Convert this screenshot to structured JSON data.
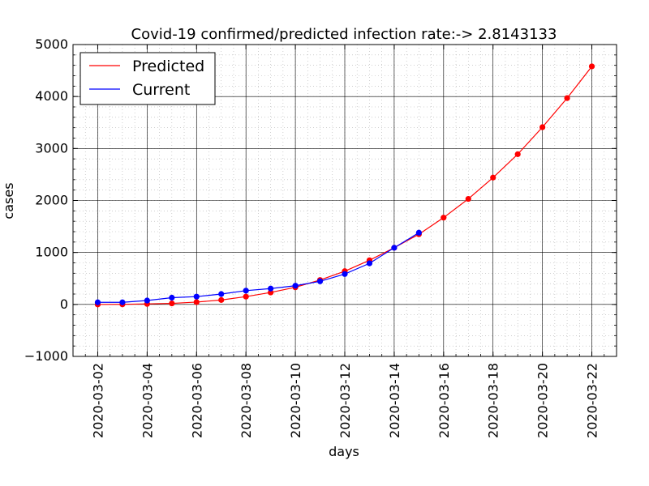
{
  "chart_data": {
    "type": "line",
    "title": "Covid-19 confirmed/predicted infection rate:-> 2.8143133",
    "xlabel": "days",
    "ylabel": "cases",
    "ylim": [
      -1000,
      5000
    ],
    "xlim": [
      "2020-03-01",
      "2020-03-23"
    ],
    "yticks": [
      -1000,
      0,
      1000,
      2000,
      3000,
      4000,
      5000
    ],
    "ytick_labels": [
      "−1000",
      "0",
      "1000",
      "2000",
      "3000",
      "4000",
      "5000"
    ],
    "xticks": [
      "2020-03-02",
      "2020-03-04",
      "2020-03-06",
      "2020-03-08",
      "2020-03-10",
      "2020-03-12",
      "2020-03-14",
      "2020-03-16",
      "2020-03-18",
      "2020-03-20",
      "2020-03-22"
    ],
    "grid": true,
    "minor_grid": true,
    "legend_position": "top-left",
    "series": [
      {
        "name": "Predicted",
        "color": "#ff0000",
        "x": [
          "2020-03-02",
          "2020-03-03",
          "2020-03-04",
          "2020-03-05",
          "2020-03-06",
          "2020-03-07",
          "2020-03-08",
          "2020-03-09",
          "2020-03-10",
          "2020-03-11",
          "2020-03-12",
          "2020-03-13",
          "2020-03-14",
          "2020-03-15",
          "2020-03-16",
          "2020-03-17",
          "2020-03-18",
          "2020-03-19",
          "2020-03-20",
          "2020-03-21",
          "2020-03-22"
        ],
        "values": [
          0,
          2,
          10,
          20,
          45,
          85,
          150,
          230,
          330,
          470,
          640,
          850,
          1090,
          1350,
          1670,
          2030,
          2440,
          2890,
          3410,
          3970,
          4580
        ]
      },
      {
        "name": "Current",
        "color": "#0000ff",
        "x": [
          "2020-03-02",
          "2020-03-03",
          "2020-03-04",
          "2020-03-05",
          "2020-03-06",
          "2020-03-07",
          "2020-03-08",
          "2020-03-09",
          "2020-03-10",
          "2020-03-11",
          "2020-03-12",
          "2020-03-13",
          "2020-03-14",
          "2020-03-15"
        ],
        "values": [
          40,
          40,
          75,
          130,
          150,
          200,
          265,
          305,
          360,
          445,
          585,
          790,
          1090,
          1380
        ]
      }
    ]
  }
}
